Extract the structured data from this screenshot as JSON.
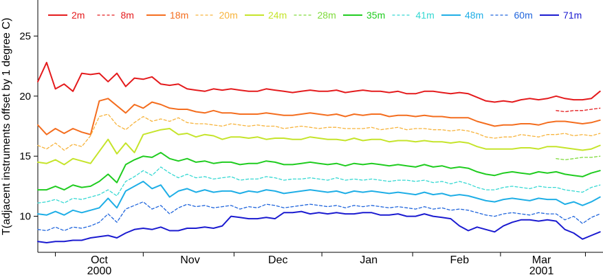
{
  "chart_data": {
    "type": "line",
    "title": "",
    "xlabel": "",
    "ylabel": "T(adjacent instruments offset by 1 degree C)",
    "ylim": [
      7,
      28
    ],
    "xlim": [
      "2000-09-10",
      "2001-03-22"
    ],
    "yticks": [
      10,
      15,
      20,
      25
    ],
    "xticks": [
      {
        "date": "2000-10-01",
        "label": "Oct",
        "year": "2000"
      },
      {
        "date": "2000-11-01",
        "label": "Nov",
        "year": ""
      },
      {
        "date": "2000-12-01",
        "label": "Dec",
        "year": ""
      },
      {
        "date": "2001-01-01",
        "label": "Jan",
        "year": ""
      },
      {
        "date": "2001-02-01",
        "label": "Feb",
        "year": ""
      },
      {
        "date": "2001-03-01",
        "label": "Mar",
        "year": "2001"
      }
    ],
    "month_boundaries": [
      "2000-09-16",
      "2000-10-16",
      "2000-11-16",
      "2000-12-16",
      "2001-01-16",
      "2001-02-15",
      "2001-03-16"
    ],
    "legend_position": "top",
    "grid": false,
    "x": [
      "2000-09-10",
      "2000-09-13",
      "2000-09-16",
      "2000-09-19",
      "2000-09-22",
      "2000-09-25",
      "2000-09-28",
      "2000-10-01",
      "2000-10-04",
      "2000-10-07",
      "2000-10-10",
      "2000-10-13",
      "2000-10-16",
      "2000-10-19",
      "2000-10-22",
      "2000-10-25",
      "2000-10-28",
      "2000-10-31",
      "2000-11-03",
      "2000-11-06",
      "2000-11-09",
      "2000-11-12",
      "2000-11-15",
      "2000-11-18",
      "2000-11-21",
      "2000-11-24",
      "2000-11-27",
      "2000-11-30",
      "2000-12-03",
      "2000-12-06",
      "2000-12-09",
      "2000-12-12",
      "2000-12-15",
      "2000-12-18",
      "2000-12-21",
      "2000-12-24",
      "2000-12-27",
      "2000-12-30",
      "2001-01-02",
      "2001-01-05",
      "2001-01-08",
      "2001-01-11",
      "2001-01-14",
      "2001-01-17",
      "2001-01-20",
      "2001-01-23",
      "2001-01-26",
      "2001-01-29",
      "2001-02-01",
      "2001-02-04",
      "2001-02-07",
      "2001-02-10",
      "2001-02-13",
      "2001-02-16",
      "2001-02-19",
      "2001-02-22",
      "2001-02-25",
      "2001-02-28",
      "2001-03-03",
      "2001-03-06",
      "2001-03-09",
      "2001-03-12",
      "2001-03-15",
      "2001-03-18",
      "2001-03-21"
    ],
    "series": [
      {
        "name": "2m",
        "color": "#e41a1c",
        "dash": "solid",
        "values": [
          21.2,
          22.8,
          20.6,
          21.0,
          20.4,
          21.9,
          21.8,
          21.9,
          21.2,
          21.9,
          20.8,
          21.5,
          21.4,
          21.6,
          21.0,
          20.9,
          21.0,
          20.6,
          20.5,
          20.4,
          20.6,
          20.5,
          20.6,
          20.5,
          20.4,
          20.4,
          20.6,
          20.5,
          20.4,
          20.3,
          20.4,
          20.5,
          20.4,
          20.4,
          20.5,
          20.3,
          20.4,
          20.5,
          20.4,
          20.4,
          20.3,
          20.4,
          20.2,
          20.2,
          20.4,
          20.4,
          20.3,
          20.2,
          20.3,
          20.2,
          19.9,
          19.6,
          19.5,
          19.6,
          19.5,
          19.7,
          19.8,
          19.7,
          19.8,
          20.0,
          19.8,
          19.7,
          19.7,
          19.8,
          20.4
        ]
      },
      {
        "name": "8m",
        "color": "#e41a1c",
        "dash": "dashed",
        "values": [
          null,
          null,
          null,
          null,
          null,
          null,
          null,
          null,
          null,
          null,
          null,
          null,
          null,
          null,
          null,
          null,
          null,
          null,
          null,
          null,
          null,
          null,
          null,
          null,
          null,
          null,
          null,
          null,
          null,
          null,
          null,
          null,
          null,
          null,
          null,
          null,
          null,
          null,
          null,
          null,
          null,
          null,
          null,
          null,
          null,
          null,
          null,
          null,
          null,
          null,
          null,
          null,
          null,
          null,
          null,
          null,
          null,
          null,
          null,
          18.8,
          18.7,
          18.8,
          18.8,
          18.9,
          19.0
        ]
      },
      {
        "name": "18m",
        "color": "#f46d1e",
        "dash": "solid",
        "values": [
          17.6,
          16.8,
          17.3,
          16.9,
          17.3,
          17.0,
          16.8,
          19.6,
          19.8,
          19.2,
          18.6,
          19.3,
          19.0,
          19.5,
          19.3,
          19.0,
          18.9,
          18.9,
          18.7,
          18.6,
          18.8,
          18.6,
          18.6,
          18.5,
          18.5,
          18.5,
          18.6,
          18.5,
          18.4,
          18.4,
          18.5,
          18.6,
          18.5,
          18.4,
          18.5,
          18.3,
          18.5,
          18.4,
          18.5,
          18.5,
          18.3,
          18.4,
          18.4,
          18.3,
          18.4,
          18.3,
          18.3,
          18.2,
          18.2,
          18.2,
          17.9,
          17.7,
          17.5,
          17.6,
          17.6,
          17.7,
          17.7,
          17.6,
          17.8,
          17.9,
          17.9,
          17.8,
          17.7,
          17.8,
          18.0
        ]
      },
      {
        "name": "20m",
        "color": "#f7b33b",
        "dash": "dashed",
        "values": [
          15.9,
          15.6,
          16.1,
          15.5,
          16.0,
          15.8,
          16.7,
          18.3,
          18.5,
          17.6,
          17.2,
          17.8,
          18.3,
          17.9,
          18.1,
          17.9,
          18.2,
          17.8,
          17.7,
          17.7,
          17.6,
          17.5,
          17.7,
          17.6,
          17.5,
          17.6,
          17.5,
          17.5,
          17.3,
          17.4,
          17.5,
          17.4,
          17.3,
          17.4,
          17.4,
          17.3,
          17.3,
          17.3,
          17.4,
          17.2,
          17.3,
          17.4,
          17.2,
          17.3,
          17.3,
          17.2,
          17.2,
          17.1,
          17.2,
          17.1,
          16.9,
          16.6,
          16.5,
          16.6,
          16.6,
          16.8,
          16.7,
          16.6,
          16.8,
          16.8,
          16.9,
          16.7,
          16.8,
          16.7,
          16.9
        ]
      },
      {
        "name": "24m",
        "color": "#c5e42a",
        "dash": "solid",
        "values": [
          14.5,
          14.4,
          14.7,
          14.3,
          14.8,
          14.6,
          14.4,
          15.4,
          16.4,
          15.2,
          16.1,
          15.3,
          16.8,
          17.0,
          17.2,
          17.3,
          16.8,
          16.9,
          16.6,
          16.8,
          16.7,
          16.4,
          16.6,
          16.6,
          16.5,
          16.6,
          16.4,
          16.5,
          16.5,
          16.4,
          16.4,
          16.6,
          16.5,
          16.4,
          16.4,
          16.3,
          16.5,
          16.3,
          16.4,
          16.4,
          16.2,
          16.3,
          16.3,
          16.2,
          16.3,
          16.2,
          16.2,
          16.1,
          16.2,
          16.1,
          15.8,
          15.6,
          15.6,
          15.6,
          15.6,
          15.7,
          15.7,
          15.6,
          15.8,
          15.8,
          15.7,
          15.6,
          15.5,
          15.6,
          15.9
        ]
      },
      {
        "name": "28m",
        "color": "#7fdb3b",
        "dash": "dashed",
        "values": [
          null,
          null,
          null,
          null,
          null,
          null,
          null,
          null,
          null,
          null,
          null,
          null,
          null,
          null,
          null,
          null,
          null,
          null,
          null,
          null,
          null,
          null,
          null,
          null,
          null,
          null,
          null,
          null,
          null,
          null,
          null,
          null,
          null,
          null,
          null,
          null,
          null,
          null,
          null,
          null,
          null,
          null,
          null,
          null,
          null,
          null,
          null,
          null,
          null,
          null,
          null,
          null,
          null,
          null,
          null,
          null,
          null,
          null,
          null,
          14.8,
          14.7,
          14.8,
          14.9,
          14.9,
          15.0
        ]
      },
      {
        "name": "35m",
        "color": "#1fcc1f",
        "dash": "solid",
        "values": [
          12.2,
          12.2,
          12.5,
          12.2,
          12.6,
          12.4,
          12.5,
          12.9,
          13.5,
          12.8,
          14.3,
          14.7,
          15.0,
          14.9,
          15.3,
          14.8,
          14.6,
          14.8,
          14.5,
          14.6,
          14.4,
          14.5,
          14.5,
          14.3,
          14.4,
          14.4,
          14.6,
          14.5,
          14.3,
          14.3,
          14.4,
          14.5,
          14.4,
          14.3,
          14.4,
          14.2,
          14.4,
          14.3,
          14.4,
          14.3,
          14.2,
          14.3,
          14.2,
          14.1,
          14.3,
          14.1,
          14.2,
          14.0,
          14.1,
          14.0,
          13.7,
          13.5,
          13.4,
          13.6,
          13.7,
          13.6,
          13.5,
          13.7,
          13.6,
          13.7,
          13.5,
          13.4,
          13.3,
          13.6,
          13.8
        ]
      },
      {
        "name": "41m",
        "color": "#34d8d2",
        "dash": "dashed",
        "values": [
          11.1,
          11.2,
          11.4,
          11.1,
          11.5,
          11.4,
          11.6,
          11.8,
          12.2,
          11.7,
          12.9,
          13.3,
          13.8,
          13.4,
          14.1,
          13.6,
          13.2,
          13.5,
          13.2,
          13.3,
          13.1,
          13.2,
          13.3,
          13.0,
          13.1,
          13.1,
          13.3,
          13.2,
          13.0,
          13.1,
          13.1,
          13.2,
          13.1,
          13.0,
          13.2,
          13.0,
          13.1,
          13.0,
          13.1,
          13.0,
          12.9,
          13.0,
          13.0,
          12.9,
          13.0,
          12.8,
          12.9,
          12.7,
          12.9,
          12.7,
          12.4,
          12.2,
          12.2,
          12.4,
          12.5,
          12.4,
          12.3,
          12.5,
          12.4,
          12.4,
          12.2,
          12.1,
          12.0,
          12.4,
          12.6
        ]
      },
      {
        "name": "48m",
        "color": "#1eaee6",
        "dash": "solid",
        "values": [
          10.2,
          10.1,
          10.4,
          10.1,
          10.5,
          10.3,
          10.5,
          10.7,
          11.5,
          10.7,
          12.1,
          12.5,
          12.9,
          12.3,
          12.6,
          11.6,
          12.1,
          12.3,
          12.0,
          12.2,
          12.0,
          12.1,
          12.1,
          11.9,
          12.1,
          12.0,
          12.2,
          12.1,
          11.9,
          12.0,
          12.1,
          12.2,
          12.1,
          12.0,
          12.1,
          11.9,
          12.1,
          12.0,
          12.1,
          12.0,
          11.9,
          12.0,
          11.9,
          11.8,
          12.0,
          11.8,
          11.9,
          11.7,
          11.8,
          11.7,
          11.5,
          11.3,
          11.2,
          11.4,
          11.5,
          11.4,
          11.3,
          11.5,
          11.4,
          11.4,
          11.0,
          11.2,
          10.9,
          11.2,
          11.6
        ]
      },
      {
        "name": "60m",
        "color": "#1e64dc",
        "dash": "dashed",
        "values": [
          8.9,
          8.8,
          9.1,
          8.8,
          9.1,
          9.0,
          9.2,
          9.5,
          10.2,
          9.5,
          10.6,
          10.9,
          11.2,
          10.6,
          10.9,
          10.2,
          10.7,
          11.0,
          10.8,
          10.9,
          10.7,
          10.8,
          10.9,
          10.6,
          10.8,
          10.7,
          11.0,
          10.9,
          10.7,
          10.8,
          10.9,
          11.0,
          10.9,
          10.8,
          10.9,
          10.7,
          10.9,
          10.8,
          10.9,
          10.8,
          10.7,
          10.8,
          10.7,
          10.6,
          10.8,
          10.6,
          10.7,
          10.5,
          10.6,
          10.5,
          10.3,
          10.1,
          10.0,
          10.2,
          10.3,
          10.2,
          10.1,
          10.3,
          10.2,
          10.2,
          9.7,
          10.0,
          9.4,
          9.9,
          10.2
        ]
      },
      {
        "name": "71m",
        "color": "#1a1ad0",
        "dash": "solid",
        "values": [
          7.9,
          7.8,
          7.9,
          7.9,
          8.0,
          8.0,
          8.2,
          8.3,
          8.4,
          8.2,
          8.6,
          8.9,
          9.0,
          8.9,
          9.1,
          8.8,
          8.8,
          9.0,
          9.0,
          9.1,
          9.0,
          9.2,
          10.0,
          9.9,
          9.8,
          9.8,
          9.9,
          9.8,
          10.3,
          10.3,
          10.4,
          10.2,
          10.3,
          10.2,
          10.3,
          10.2,
          10.2,
          10.3,
          10.3,
          10.1,
          10.1,
          10.2,
          10.0,
          10.0,
          10.2,
          10.0,
          9.9,
          9.8,
          9.2,
          8.8,
          9.1,
          8.9,
          8.7,
          9.2,
          9.5,
          9.7,
          9.7,
          9.6,
          9.7,
          9.6,
          8.9,
          8.6,
          8.1,
          8.4,
          8.7
        ]
      }
    ]
  }
}
